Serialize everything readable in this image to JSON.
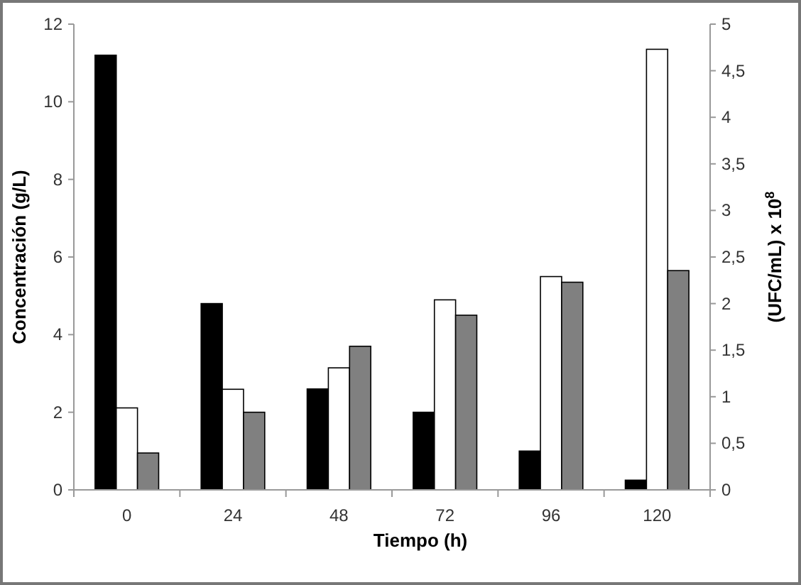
{
  "chart_data": {
    "type": "bar",
    "xlabel": "Tiempo (h)",
    "ylabel": "Concentración  (g/L)",
    "y2label": "(UFC/mL) x 10$^{8}$",
    "categories": [
      "0",
      "24",
      "48",
      "72",
      "96",
      "120"
    ],
    "series": [
      {
        "color": "#000000",
        "values": [
          11.2,
          4.8,
          2.6,
          2.0,
          1.0,
          0.25
        ]
      },
      {
        "color": "#ffffff",
        "axis": "y2",
        "values": [
          0.88,
          1.08,
          1.31,
          2.04,
          2.29,
          4.73
        ]
      },
      {
        "color": "#808080",
        "values": [
          0.95,
          2.0,
          3.7,
          4.5,
          5.35,
          5.65
        ]
      }
    ],
    "ylim": [
      0,
      12
    ],
    "yticks": [
      0,
      2,
      4,
      6,
      8,
      10,
      12
    ],
    "y2lim": [
      0,
      5
    ],
    "y2ticks": [
      0,
      {
        "value": 0.5,
        "label": "0,5"
      },
      1,
      {
        "value": 1.5,
        "label": "1,5"
      },
      2,
      {
        "value": 2.5,
        "label": "2,5"
      },
      3,
      {
        "value": 3.5,
        "label": "3,5"
      },
      4,
      {
        "value": 4.5,
        "label": "4,5"
      },
      5
    ],
    "grid": false
  }
}
